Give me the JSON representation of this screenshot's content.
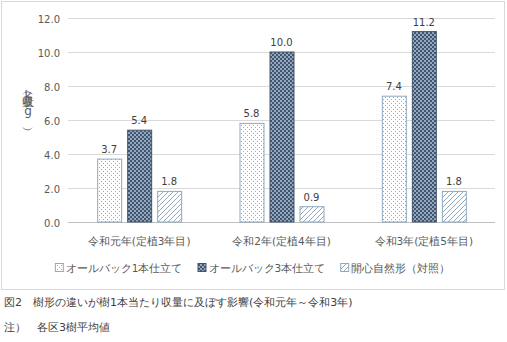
{
  "chart_data": {
    "type": "bar",
    "title": "図2　樹形の違いが樹1本当たり収量に及ぼす影響(令和元年～令和3年)",
    "annotations": [
      "注）　各区3樹平均値"
    ],
    "ylabel": "収量（kg）",
    "categories": [
      "令和元年(定植3年目)",
      "令和2年(定植4年目)",
      "令和3年(定植5年目)"
    ],
    "series": [
      {
        "name": "オールバック1本仕立て",
        "color": "#8ea9c1",
        "values": [
          3.7,
          5.8,
          7.4
        ]
      },
      {
        "name": "オールバック3本仕立て",
        "color": "#44546a",
        "values": [
          5.4,
          10.0,
          11.2
        ],
        "value_labels": [
          "5.4",
          "10.0",
          "11.2"
        ]
      },
      {
        "name": "開心自然形（対照）",
        "color": "#8ea9c1",
        "values": [
          1.8,
          0.9,
          1.8
        ]
      }
    ],
    "ylim": [
      0,
      12
    ],
    "yticks": [
      {
        "value": 0,
        "label": "0.0"
      },
      {
        "value": 2,
        "label": "2.0"
      },
      {
        "value": 4,
        "label": "4.0"
      },
      {
        "value": 6,
        "label": "6.0"
      },
      {
        "value": 8,
        "label": "8.0"
      },
      {
        "value": 10,
        "label": "10.0"
      },
      {
        "value": 12,
        "label": "12.0"
      }
    ],
    "grid": true,
    "legend": "bottom",
    "data_labels": true
  }
}
